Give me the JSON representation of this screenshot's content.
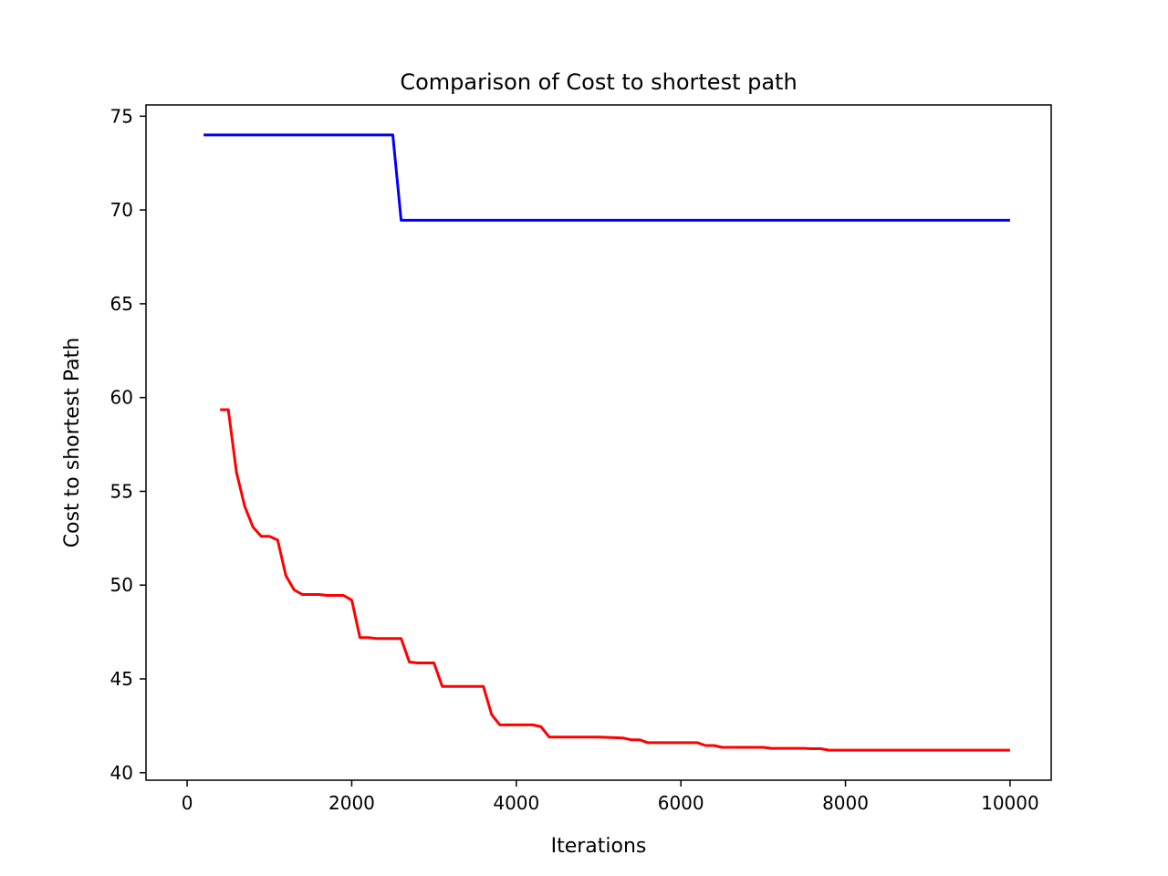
{
  "chart_data": {
    "type": "line",
    "title": "Comparison of Cost to shortest path",
    "xlabel": "Iterations",
    "ylabel": "Cost to shortest Path",
    "xlim": [
      -500,
      10500
    ],
    "ylim": [
      39.6,
      75.6
    ],
    "xticks": [
      0,
      2000,
      4000,
      6000,
      8000,
      10000
    ],
    "xtick_labels": [
      "0",
      "2000",
      "4000",
      "6000",
      "8000",
      "10000"
    ],
    "yticks": [
      40,
      45,
      50,
      55,
      60,
      65,
      70,
      75
    ],
    "ytick_labels": [
      "40",
      "45",
      "50",
      "55",
      "60",
      "65",
      "70",
      "75"
    ],
    "grid": false,
    "legend": "none",
    "series": [
      {
        "color": "#0000ff",
        "x": [
          200,
          2500,
          2600,
          10000
        ],
        "y": [
          74.0,
          74.0,
          69.45,
          69.45
        ]
      },
      {
        "color": "#ff0000",
        "x": [
          400,
          500,
          600,
          700,
          800,
          900,
          1000,
          1100,
          1200,
          1300,
          1400,
          1500,
          1600,
          1700,
          1800,
          1900,
          2000,
          2100,
          2200,
          2300,
          2400,
          2500,
          2600,
          2700,
          2800,
          2900,
          3000,
          3100,
          3200,
          3300,
          3400,
          3500,
          3600,
          3700,
          3800,
          3900,
          4000,
          4100,
          4200,
          4300,
          4400,
          4500,
          5000,
          5300,
          5400,
          5500,
          5600,
          5700,
          6000,
          6200,
          6300,
          6400,
          6500,
          6600,
          7000,
          7100,
          7500,
          7600,
          7700,
          7800,
          8000,
          8500,
          10000
        ],
        "y": [
          59.35,
          59.35,
          56.0,
          54.2,
          53.1,
          52.6,
          52.6,
          52.4,
          50.5,
          49.75,
          49.5,
          49.5,
          49.5,
          49.45,
          49.45,
          49.45,
          49.2,
          47.2,
          47.2,
          47.15,
          47.15,
          47.15,
          47.15,
          45.9,
          45.85,
          45.85,
          45.85,
          44.6,
          44.6,
          44.6,
          44.6,
          44.6,
          44.6,
          43.1,
          42.55,
          42.55,
          42.55,
          42.55,
          42.55,
          42.45,
          41.9,
          41.9,
          41.9,
          41.85,
          41.75,
          41.75,
          41.6,
          41.6,
          41.6,
          41.6,
          41.45,
          41.45,
          41.35,
          41.35,
          41.35,
          41.3,
          41.3,
          41.28,
          41.28,
          41.2,
          41.2,
          41.2,
          41.2
        ]
      }
    ]
  }
}
